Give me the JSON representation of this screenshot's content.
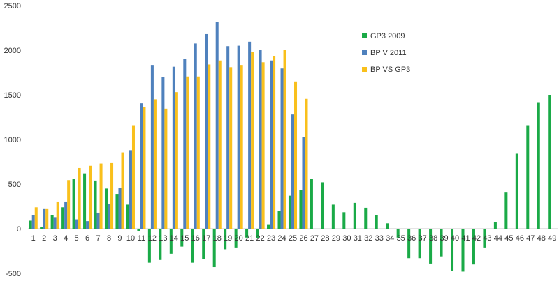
{
  "chart_data": {
    "type": "bar",
    "categories": [
      "1",
      "2",
      "3",
      "4",
      "5",
      "6",
      "7",
      "8",
      "9",
      "10",
      "11",
      "12",
      "13",
      "14",
      "15",
      "16",
      "17",
      "18",
      "19",
      "20",
      "21",
      "22",
      "23",
      "24",
      "25",
      "26",
      "27",
      "28",
      "29",
      "30",
      "31",
      "32",
      "33",
      "34",
      "35",
      "36",
      "37",
      "38",
      "39",
      "40",
      "41",
      "42",
      "43",
      "44",
      "45",
      "46",
      "47",
      "48",
      "49"
    ],
    "ylim": [
      -500,
      2500
    ],
    "yticks": [
      -500,
      0,
      500,
      1000,
      1500,
      2000,
      2500
    ],
    "grid": false,
    "legend_position": "top-right",
    "series": [
      {
        "name": "GP3 2009",
        "color": "#1aaa47",
        "values": [
          90,
          20,
          150,
          240,
          555,
          620,
          540,
          450,
          390,
          270,
          -30,
          -380,
          -350,
          -280,
          -200,
          -380,
          -340,
          -430,
          -230,
          -210,
          -100,
          -110,
          50,
          200,
          370,
          430,
          555,
          520,
          270,
          185,
          290,
          235,
          150,
          60,
          -100,
          -330,
          -330,
          -390,
          -310,
          -470,
          -480,
          -400,
          -210,
          75,
          405,
          840,
          1160,
          1410,
          1500
        ]
      },
      {
        "name": "BP V 2011",
        "color": "#4f81bd",
        "values": [
          150,
          220,
          130,
          305,
          105,
          85,
          180,
          280,
          460,
          880,
          1405,
          1835,
          1700,
          1815,
          1905,
          2075,
          2180,
          2320,
          2045,
          2050,
          2095,
          2000,
          1885,
          1795,
          1280,
          1025,
          null,
          null,
          null,
          null,
          null,
          null,
          null,
          null,
          null,
          null,
          null,
          null,
          null,
          null,
          null,
          null,
          null,
          null,
          null,
          null,
          null,
          null,
          null
        ]
      },
      {
        "name": "BP VS GP3",
        "color": "#f9c01c",
        "values": [
          240,
          220,
          305,
          545,
          680,
          705,
          730,
          735,
          855,
          1160,
          1365,
          1450,
          1345,
          1530,
          1705,
          1705,
          1840,
          1885,
          1810,
          1835,
          1980,
          1865,
          1930,
          2005,
          1650,
          1455,
          null,
          null,
          null,
          null,
          null,
          null,
          null,
          null,
          null,
          null,
          null,
          null,
          null,
          null,
          null,
          null,
          null,
          null,
          null,
          null,
          null,
          null,
          null
        ]
      }
    ]
  }
}
